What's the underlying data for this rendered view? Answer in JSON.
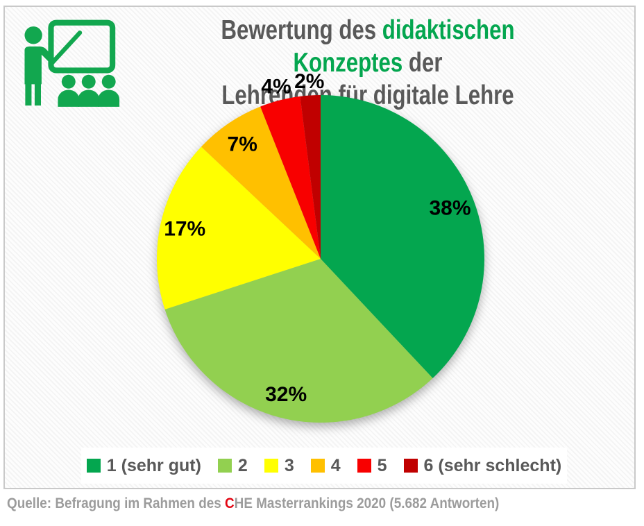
{
  "title": {
    "line1_prefix": "Bewertung des ",
    "line1_highlight": "didaktischen Konzeptes",
    "line1_suffix": " der",
    "line2": "Lehrenden für digitale Lehre"
  },
  "chart_data": {
    "type": "pie",
    "title": "Bewertung des didaktischen Konzeptes der Lehrenden für digitale Lehre",
    "unit": "%",
    "start_angle_deg": 0,
    "direction": "clockwise",
    "legend_position": "bottom",
    "slices": [
      {
        "label": "1 (sehr gut)",
        "value": 38,
        "data_label": "38%",
        "color": "#04A64F"
      },
      {
        "label": "2",
        "value": 32,
        "data_label": "32%",
        "color": "#92D050"
      },
      {
        "label": "3",
        "value": 17,
        "data_label": "17%",
        "color": "#FFFF00"
      },
      {
        "label": "4",
        "value": 7,
        "data_label": "7%",
        "color": "#FFC000"
      },
      {
        "label": "5",
        "value": 4,
        "data_label": "4%",
        "color": "#F80000"
      },
      {
        "label": "6 (sehr schlecht)",
        "value": 2,
        "data_label": "2%",
        "color": "#C00000"
      }
    ]
  },
  "source": {
    "prefix": "Quelle: Befragung im Rahmen des ",
    "highlight": "C",
    "rest": "HE Masterrankings 2020 (5.682 Antworten)"
  },
  "icon": {
    "name": "teacher-presentation-icon",
    "color": "#12A74F"
  },
  "colors": {
    "title_gray": "#595959",
    "title_green": "#04A64F",
    "frame_border": "#C9C9C9",
    "legend_text": "#595959",
    "source_gray": "#9C9C9C",
    "source_red": "#E30613",
    "label_black": "#000000"
  }
}
